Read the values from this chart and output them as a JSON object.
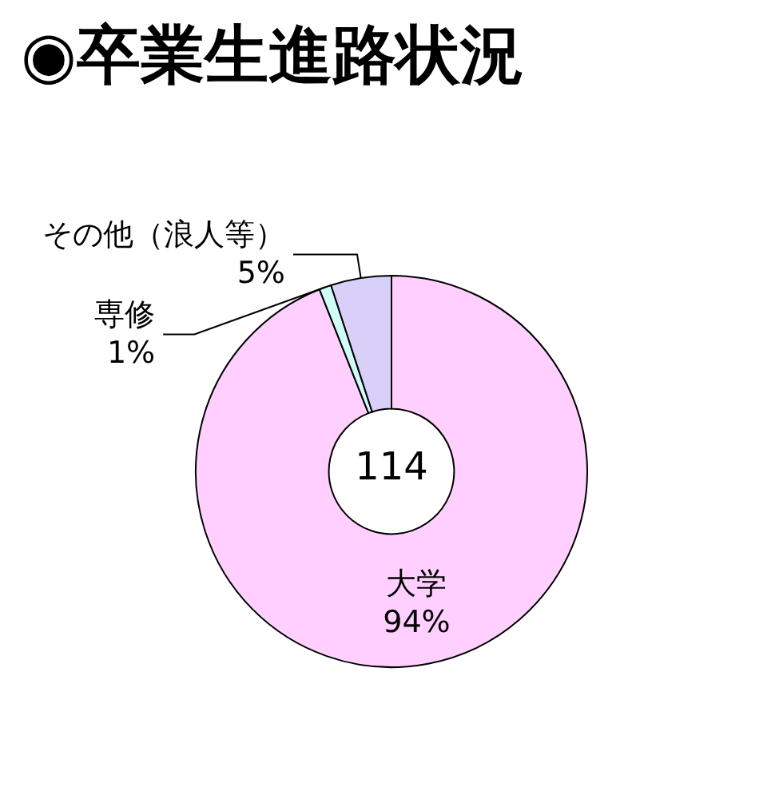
{
  "chart_data": {
    "type": "donut",
    "title": "◉卒業生進路状況",
    "categories": [
      "大学",
      "専修",
      "その他（浪人等）"
    ],
    "values": [
      94,
      1,
      5
    ],
    "colors": [
      "#ffd0ff",
      "#d0fff8",
      "#d8d0f8"
    ],
    "value_labels": [
      "94%",
      "1%",
      "5%"
    ],
    "annotations": [
      "114"
    ],
    "legend": false
  }
}
